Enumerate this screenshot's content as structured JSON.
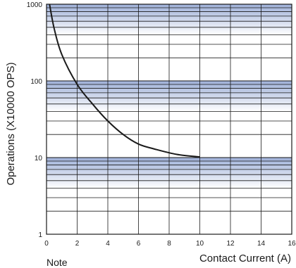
{
  "chart_data": {
    "type": "line",
    "title": "",
    "xlabel": "Contact Current (A)",
    "ylabel": "Operations (X10000 OPS)",
    "xscale": "linear",
    "yscale": "log",
    "xlim": [
      0,
      16
    ],
    "ylim": [
      1,
      1000
    ],
    "x_ticks": [
      "0",
      "2",
      "4",
      "6",
      "8",
      "10",
      "12",
      "14",
      "16"
    ],
    "y_ticks": [
      "1",
      "10",
      "100",
      "1000"
    ],
    "grid": true,
    "band_colors": {
      "dark": "#9eb0d8",
      "light": "#ffffff"
    },
    "line_color": "#1a1a1a",
    "series": [
      {
        "x": [
          0.2,
          0.5,
          1,
          2,
          3,
          4,
          5,
          6,
          7,
          8.5,
          10
        ],
        "y": [
          1000,
          480,
          220,
          90,
          50,
          30,
          20,
          15,
          13,
          11,
          10.2
        ]
      }
    ]
  },
  "note": "Note"
}
